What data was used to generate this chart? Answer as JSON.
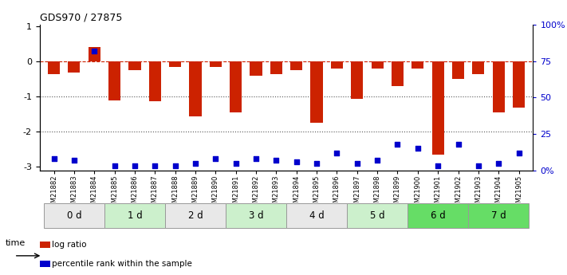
{
  "title": "GDS970 / 27875",
  "samples": [
    "GSM21882",
    "GSM21883",
    "GSM21884",
    "GSM21885",
    "GSM21886",
    "GSM21887",
    "GSM21888",
    "GSM21889",
    "GSM21890",
    "GSM21891",
    "GSM21892",
    "GSM21893",
    "GSM21894",
    "GSM21895",
    "GSM21896",
    "GSM21897",
    "GSM21898",
    "GSM21899",
    "GSM21900",
    "GSM21901",
    "GSM21902",
    "GSM21903",
    "GSM21904",
    "GSM21905"
  ],
  "log_ratio": [
    -0.35,
    -0.32,
    0.42,
    -1.1,
    -0.25,
    -1.12,
    -0.15,
    -1.55,
    -0.15,
    -1.45,
    -0.4,
    -0.35,
    -0.25,
    -1.75,
    -0.2,
    -1.05,
    -0.2,
    -0.7,
    -0.2,
    -2.65,
    -0.5,
    -0.35,
    -1.45,
    -1.3
  ],
  "percentile_rank": [
    8,
    7,
    82,
    3,
    3,
    3,
    3,
    5,
    8,
    5,
    8,
    7,
    6,
    5,
    12,
    5,
    7,
    18,
    15,
    3,
    18,
    3,
    5,
    12
  ],
  "time_groups": {
    "0 d": [
      0,
      1,
      2
    ],
    "1 d": [
      3,
      4,
      5
    ],
    "2 d": [
      6,
      7,
      8
    ],
    "3 d": [
      9,
      10,
      11
    ],
    "4 d": [
      12,
      13,
      14
    ],
    "5 d": [
      15,
      16,
      17
    ],
    "6 d": [
      18,
      19,
      20
    ],
    "7 d": [
      21,
      22,
      23
    ]
  },
  "group_colors": [
    "#e8e8e8",
    "#ccf0cc",
    "#e8e8e8",
    "#ccf0cc",
    "#e8e8e8",
    "#ccf0cc",
    "#66dd66",
    "#66dd66"
  ],
  "bar_color": "#cc2200",
  "dot_color": "#0000cc",
  "ylim_left": [
    -3.1,
    1.05
  ],
  "ylim_right": [
    0,
    100
  ],
  "yticks_left": [
    -3,
    -2,
    -1,
    0,
    1
  ],
  "yticks_right": [
    0,
    25,
    50,
    75,
    100
  ],
  "hlines_y": [
    0,
    -1,
    -2
  ],
  "hline_styles": [
    "--",
    ":",
    ":"
  ],
  "hline_colors": [
    "#cc2200",
    "#555555",
    "#555555"
  ],
  "legend_items": [
    {
      "label": "log ratio",
      "color": "#cc2200"
    },
    {
      "label": "percentile rank within the sample",
      "color": "#0000cc"
    }
  ]
}
